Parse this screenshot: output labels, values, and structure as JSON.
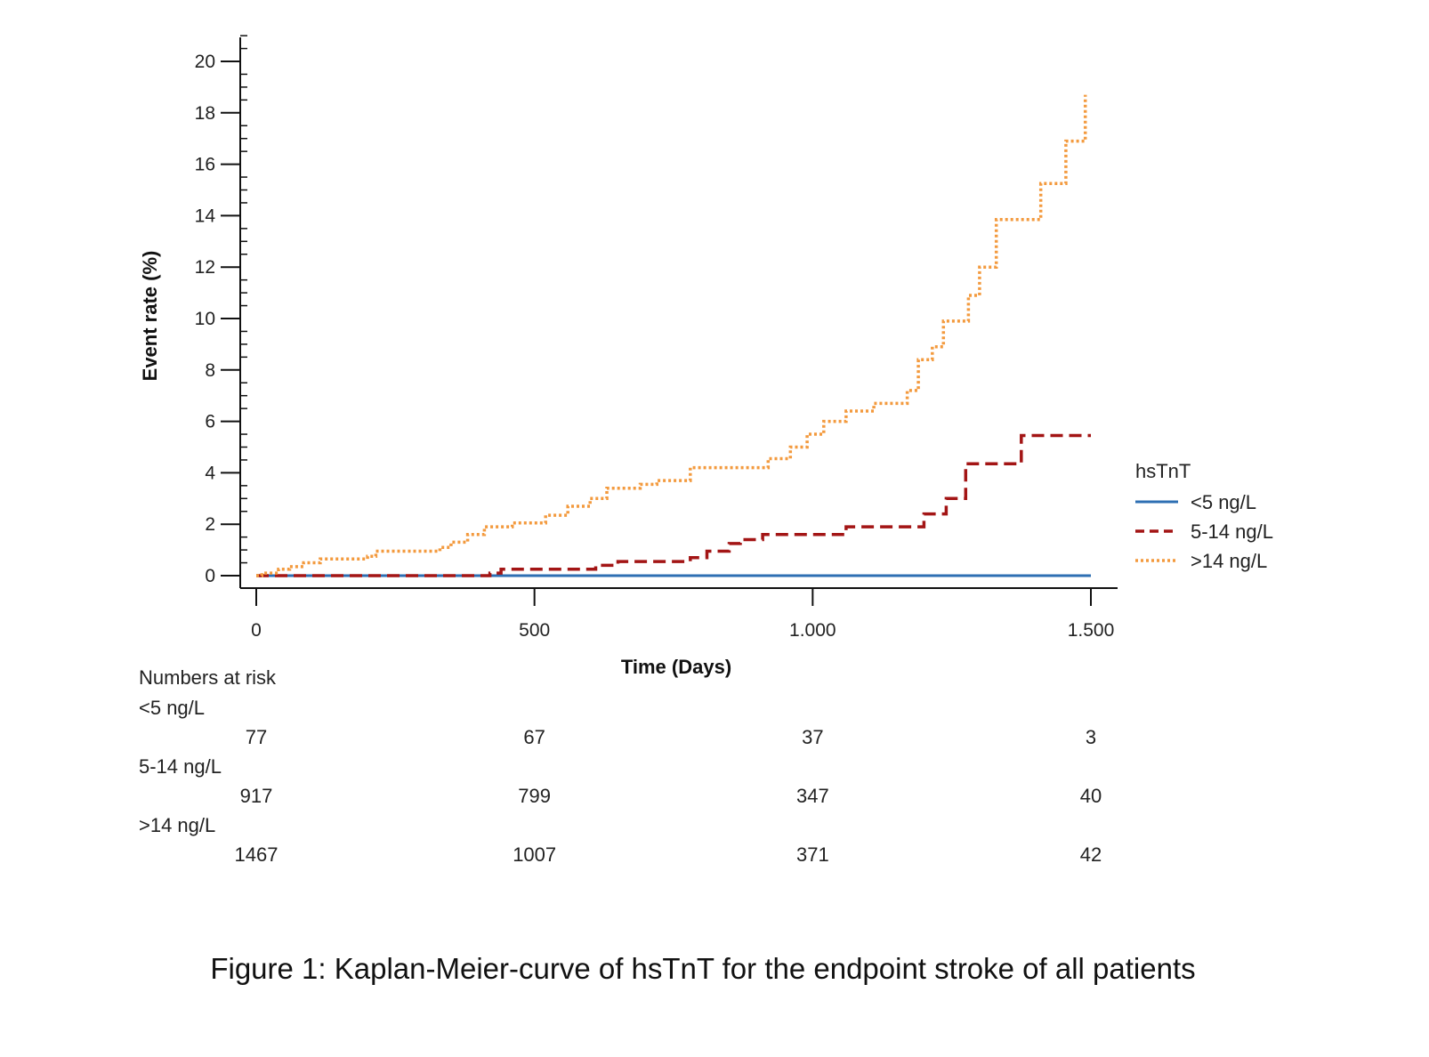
{
  "chart_data": {
    "type": "line",
    "step": true,
    "xlabel": "Time (Days)",
    "ylabel": "Event rate (%)",
    "xlim": [
      0,
      1500
    ],
    "ylim": [
      0,
      20
    ],
    "x_ticks": [
      0,
      500,
      1000,
      1500
    ],
    "x_tick_labels": [
      "0",
      "500",
      "1.000",
      "1.500"
    ],
    "y_ticks": [
      0,
      2,
      4,
      6,
      8,
      10,
      12,
      14,
      16,
      18,
      20
    ],
    "y_tick_labels": [
      "0",
      "2",
      "4",
      "6",
      "8",
      "10",
      "12",
      "14",
      "16",
      "18",
      "20"
    ],
    "legend": {
      "title": "hsTnT",
      "position": "right"
    },
    "series": [
      {
        "name": "<5 ng/L",
        "color": "#2e6fb3",
        "style": "solid",
        "points": [
          [
            0,
            0
          ],
          [
            1500,
            0
          ]
        ]
      },
      {
        "name": "5-14 ng/L",
        "color": "#a31515",
        "style": "dashed",
        "points": [
          [
            0,
            0
          ],
          [
            420,
            0
          ],
          [
            420,
            0.1
          ],
          [
            440,
            0.1
          ],
          [
            440,
            0.25
          ],
          [
            610,
            0.25
          ],
          [
            610,
            0.4
          ],
          [
            650,
            0.4
          ],
          [
            650,
            0.55
          ],
          [
            780,
            0.55
          ],
          [
            780,
            0.7
          ],
          [
            810,
            0.7
          ],
          [
            810,
            0.95
          ],
          [
            850,
            0.95
          ],
          [
            850,
            1.25
          ],
          [
            870,
            1.25
          ],
          [
            870,
            1.4
          ],
          [
            910,
            1.4
          ],
          [
            910,
            1.6
          ],
          [
            1060,
            1.6
          ],
          [
            1060,
            1.9
          ],
          [
            1200,
            1.9
          ],
          [
            1200,
            2.4
          ],
          [
            1240,
            2.4
          ],
          [
            1240,
            3.0
          ],
          [
            1275,
            3.0
          ],
          [
            1275,
            4.35
          ],
          [
            1375,
            4.35
          ],
          [
            1375,
            5.45
          ],
          [
            1500,
            5.45
          ]
        ]
      },
      {
        "name": ">14 ng/L",
        "color": "#f39a3e",
        "style": "dotted",
        "points": [
          [
            0,
            0
          ],
          [
            10,
            0
          ],
          [
            10,
            0.1
          ],
          [
            40,
            0.1
          ],
          [
            40,
            0.25
          ],
          [
            60,
            0.25
          ],
          [
            60,
            0.35
          ],
          [
            85,
            0.35
          ],
          [
            85,
            0.5
          ],
          [
            115,
            0.5
          ],
          [
            115,
            0.65
          ],
          [
            200,
            0.65
          ],
          [
            200,
            0.75
          ],
          [
            215,
            0.75
          ],
          [
            215,
            0.95
          ],
          [
            330,
            0.95
          ],
          [
            330,
            1.1
          ],
          [
            350,
            1.1
          ],
          [
            350,
            1.3
          ],
          [
            380,
            1.3
          ],
          [
            380,
            1.6
          ],
          [
            410,
            1.6
          ],
          [
            410,
            1.9
          ],
          [
            460,
            1.9
          ],
          [
            460,
            2.05
          ],
          [
            520,
            2.05
          ],
          [
            520,
            2.35
          ],
          [
            560,
            2.35
          ],
          [
            560,
            2.7
          ],
          [
            600,
            2.7
          ],
          [
            600,
            3.0
          ],
          [
            630,
            3.0
          ],
          [
            630,
            3.4
          ],
          [
            690,
            3.4
          ],
          [
            690,
            3.55
          ],
          [
            720,
            3.55
          ],
          [
            720,
            3.7
          ],
          [
            780,
            3.7
          ],
          [
            780,
            4.2
          ],
          [
            920,
            4.2
          ],
          [
            920,
            4.55
          ],
          [
            960,
            4.55
          ],
          [
            960,
            5.0
          ],
          [
            990,
            5.0
          ],
          [
            990,
            5.5
          ],
          [
            1020,
            5.5
          ],
          [
            1020,
            6.0
          ],
          [
            1060,
            6.0
          ],
          [
            1060,
            6.4
          ],
          [
            1110,
            6.4
          ],
          [
            1110,
            6.7
          ],
          [
            1170,
            6.7
          ],
          [
            1170,
            7.2
          ],
          [
            1190,
            7.2
          ],
          [
            1190,
            8.4
          ],
          [
            1215,
            8.4
          ],
          [
            1215,
            8.9
          ],
          [
            1235,
            8.9
          ],
          [
            1235,
            9.9
          ],
          [
            1280,
            9.9
          ],
          [
            1280,
            10.9
          ],
          [
            1300,
            10.9
          ],
          [
            1300,
            12.0
          ],
          [
            1330,
            12.0
          ],
          [
            1330,
            13.85
          ],
          [
            1410,
            13.85
          ],
          [
            1410,
            15.25
          ],
          [
            1455,
            15.25
          ],
          [
            1455,
            16.9
          ],
          [
            1490,
            16.9
          ],
          [
            1490,
            18.7
          ]
        ]
      }
    ]
  },
  "risk_table": {
    "title": "Numbers at risk",
    "groups": [
      {
        "label": "<5 ng/L",
        "counts": [
          "77",
          "67",
          "37",
          "3"
        ]
      },
      {
        "label": "5-14 ng/L",
        "counts": [
          "917",
          "799",
          "347",
          "40"
        ]
      },
      {
        "label": ">14 ng/L",
        "counts": [
          "1467",
          "1007",
          "371",
          "42"
        ]
      }
    ]
  },
  "caption": "Figure 1: Kaplan-Meier-curve of hsTnT for the endpoint stroke of all patients"
}
